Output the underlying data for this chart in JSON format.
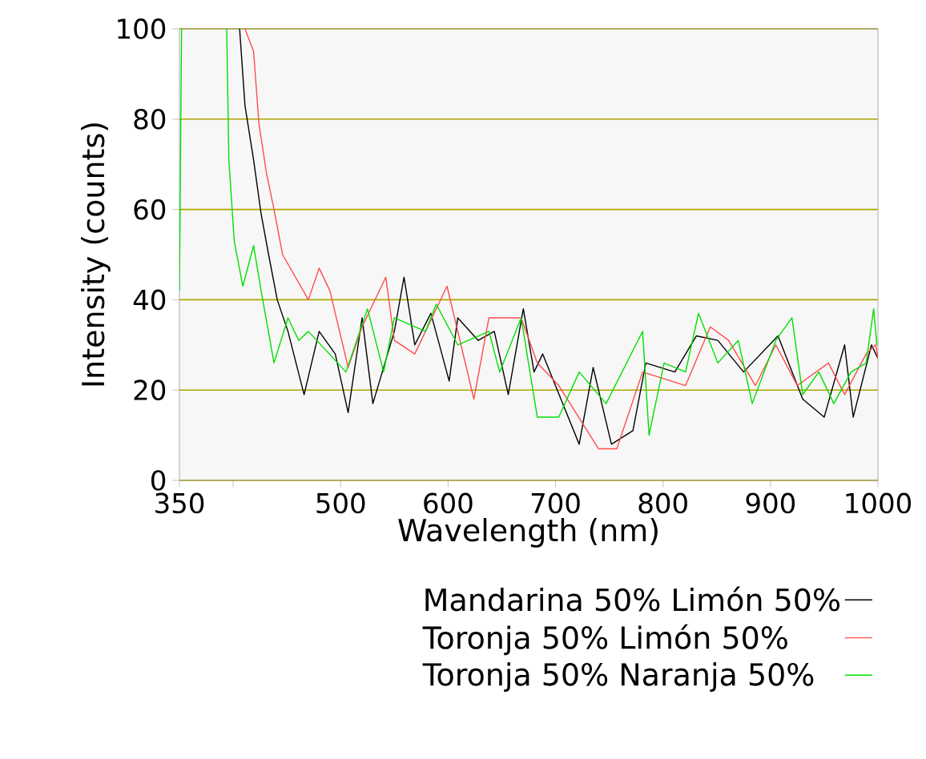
{
  "chart_data": {
    "type": "line",
    "xlabel": "Wavelength (nm)",
    "ylabel": "Intensity (counts)",
    "xlim": [
      350,
      1000
    ],
    "ylim": [
      0,
      100
    ],
    "xticks": [
      350,
      {
        "value": 400,
        "label": null
      },
      500,
      600,
      700,
      800,
      900,
      1000
    ],
    "yticks": [
      0,
      20,
      40,
      60,
      80,
      100
    ],
    "grid": "y",
    "legend": "bottom right",
    "line_style": "solid",
    "marker": "none",
    "series": [
      {
        "name": "Mandarina 50% Limón 50%",
        "color": "#000000",
        "x": [
          406,
          411,
          419,
          426,
          433,
          441,
          451,
          466,
          480,
          495,
          507,
          520,
          530,
          550,
          559,
          569,
          584,
          601,
          609,
          628,
          643,
          656,
          670,
          680,
          688,
          722,
          735,
          752,
          772,
          784,
          811,
          831,
          851,
          875,
          907,
          930,
          950,
          969,
          977,
          994,
          1000
        ],
        "values": [
          100,
          83,
          71,
          59,
          50,
          40,
          33,
          19,
          33,
          28,
          15,
          36,
          17,
          33,
          45,
          30,
          37,
          22,
          36,
          31,
          33,
          19,
          38,
          24,
          28,
          8,
          25,
          8,
          11,
          26,
          24,
          32,
          31,
          24,
          32,
          18,
          14,
          30,
          14,
          30,
          27
        ]
      },
      {
        "name": "Toronja 50% Limón 50%",
        "color": "#ff4c4c",
        "x": [
          411,
          419,
          424,
          431,
          438,
          446,
          458,
          470,
          480,
          490,
          507,
          520,
          542,
          550,
          569,
          599,
          624,
          638,
          668,
          683,
          703,
          740,
          757,
          781,
          821,
          844,
          861,
          886,
          905,
          925,
          954,
          969,
          989,
          998,
          1000
        ],
        "values": [
          100,
          95,
          79,
          68,
          60,
          50,
          45,
          40,
          47,
          42,
          25,
          34,
          45,
          31,
          28,
          43,
          18,
          36,
          36,
          26,
          21,
          7,
          7,
          24,
          21,
          34,
          31,
          21,
          30,
          21,
          26,
          19,
          28,
          30,
          27
        ]
      },
      {
        "name": "Toronja 50% Naranja 50%",
        "color": "#00e000",
        "x": [
          350,
          352,
          353,
          394,
          396,
          401,
          409,
          419,
          426,
          438,
          451,
          461,
          470,
          505,
          525,
          540,
          550,
          579,
          589,
          609,
          638,
          648,
          668,
          683,
          703,
          722,
          747,
          764,
          781,
          787,
          801,
          821,
          833,
          851,
          870,
          883,
          905,
          920,
          930,
          945,
          959,
          975,
          989,
          996,
          999
        ],
        "values": [
          42,
          100,
          null,
          100,
          71,
          53,
          43,
          52,
          42,
          26,
          36,
          31,
          33,
          24,
          38,
          24,
          36,
          33,
          39,
          30,
          33,
          24,
          36,
          14,
          14,
          24,
          17,
          25,
          33,
          10,
          26,
          24,
          37,
          26,
          31,
          17,
          31,
          36,
          19,
          24,
          17,
          24,
          26,
          38,
          30
        ]
      }
    ]
  }
}
